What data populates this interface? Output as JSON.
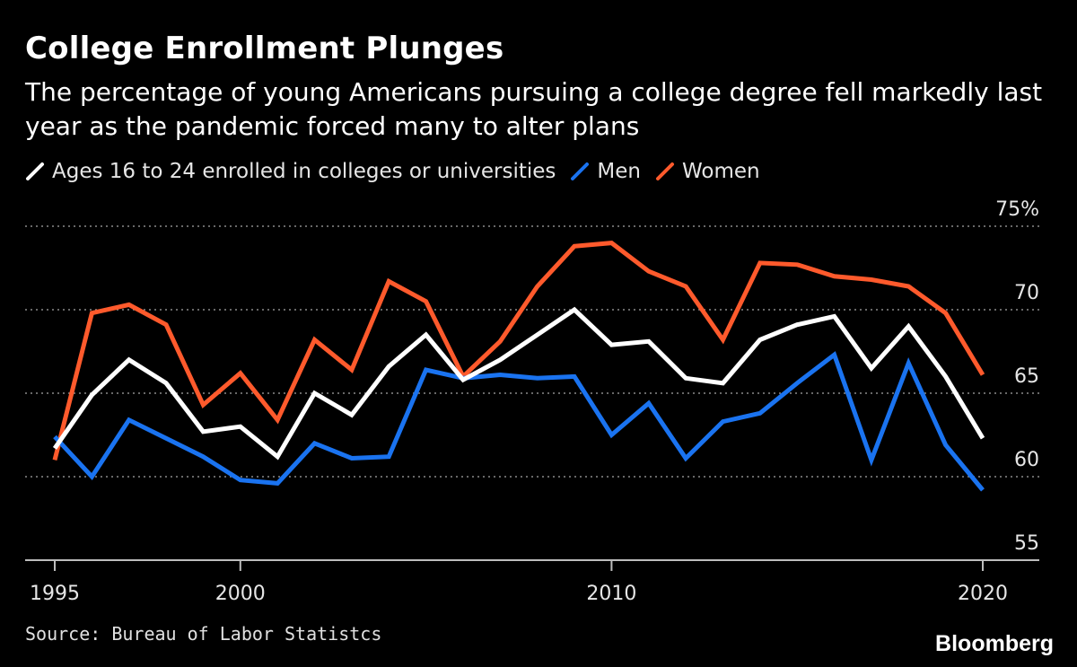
{
  "title": "College Enrollment Plunges",
  "subtitle": "The percentage of young Americans pursuing a college degree fell markedly last year as the pandemic forced many to alter plans",
  "source": "Source: Bureau of Labor Statistcs",
  "brand": "Bloomberg",
  "chart_data": {
    "type": "line",
    "x": [
      1995,
      1996,
      1997,
      1998,
      1999,
      2000,
      2001,
      2002,
      2003,
      2004,
      2005,
      2006,
      2007,
      2008,
      2009,
      2010,
      2011,
      2012,
      2013,
      2014,
      2015,
      2016,
      2017,
      2018,
      2019,
      2020
    ],
    "xticks": [
      1995,
      2000,
      2010,
      2020
    ],
    "xtick_labels": [
      "1995",
      "2000",
      "2010",
      "2020"
    ],
    "yticks": [
      55,
      60,
      65,
      70,
      75
    ],
    "ytick_labels": [
      "55",
      "60",
      "65",
      "70",
      "75%"
    ],
    "ylim": [
      55,
      75
    ],
    "xlim": [
      1995,
      2020
    ],
    "grid": true,
    "legend_position": "top-left",
    "series": [
      {
        "name": "Ages 16 to 24 enrolled in colleges or universities",
        "color": "#ffffff",
        "values": [
          61.7,
          64.9,
          67.0,
          65.6,
          62.7,
          63.0,
          61.2,
          65.0,
          63.7,
          66.6,
          68.5,
          65.8,
          67.0,
          68.5,
          70.0,
          67.9,
          68.1,
          65.9,
          65.6,
          68.2,
          69.1,
          69.6,
          66.5,
          69.0,
          66.0,
          62.3
        ]
      },
      {
        "name": "Men",
        "color": "#1a73f0",
        "values": [
          62.4,
          60.0,
          63.4,
          62.3,
          61.2,
          59.8,
          59.6,
          62.0,
          61.1,
          61.2,
          66.4,
          65.9,
          66.1,
          65.9,
          66.0,
          62.5,
          64.4,
          61.1,
          63.3,
          63.8,
          65.6,
          67.3,
          61.0,
          66.8,
          61.9,
          59.2
        ]
      },
      {
        "name": "Women",
        "color": "#ff5a2c",
        "values": [
          61.0,
          69.8,
          70.3,
          69.1,
          64.3,
          66.2,
          63.4,
          68.2,
          66.4,
          71.7,
          70.5,
          66.0,
          68.1,
          71.4,
          73.8,
          74.0,
          72.3,
          71.4,
          68.2,
          72.8,
          72.7,
          72.0,
          71.8,
          71.4,
          69.8,
          66.1
        ]
      }
    ]
  }
}
